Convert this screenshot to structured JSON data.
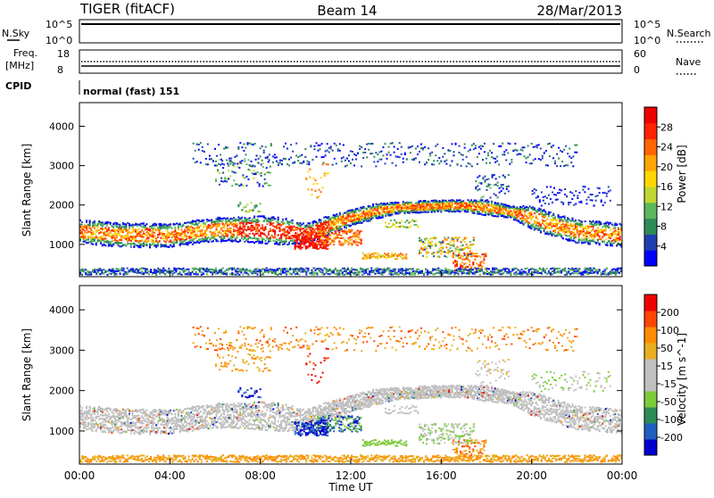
{
  "header": {
    "radar": "TIGER (fitACF)",
    "beam": "Beam 14",
    "date": "28/Mar/2013"
  },
  "nsky_panel": {
    "left_label": "N.Sky",
    "left_ticks": [
      "10^5",
      "10^0"
    ],
    "right_label": "N.Search",
    "right_ticks": [
      "10^5",
      "10^0"
    ]
  },
  "freq_panel": {
    "left_label_line1": "Freq.",
    "left_label_line2": "[MHz]",
    "left_ticks": [
      "18",
      "8"
    ],
    "right_label": "Nave",
    "right_ticks": [
      "60",
      "0"
    ]
  },
  "cpid_panel": {
    "label": "CPID",
    "text": "normal (fast) 151"
  },
  "colors": {
    "power_scale": [
      "#0000ff",
      "#1f3fb0",
      "#2e8b57",
      "#5cb85c",
      "#bfd730",
      "#ffd700",
      "#ffa500",
      "#ff6600",
      "#ff2200",
      "#ee0000"
    ],
    "velocity_scale": [
      "#0000cc",
      "#1f5fbf",
      "#2e8b57",
      "#7ccc3a",
      "#c0c0c0",
      "#c0c0c0",
      "#e8b020",
      "#ff8c00",
      "#ff4500",
      "#ee0000"
    ]
  },
  "chart_data": [
    {
      "type": "heatmap",
      "name": "power",
      "ylabel": "Slant Range [km]",
      "y_ticks": [
        "4000",
        "3000",
        "2000",
        "1000"
      ],
      "ylim": [
        180,
        4600
      ],
      "colorbar_label": "Power [dB]",
      "colorbar_ticks": [
        "28",
        "24",
        "20",
        "16",
        "12",
        "8",
        "4"
      ],
      "colorbar_range": [
        0,
        32
      ]
    },
    {
      "type": "heatmap",
      "name": "velocity",
      "ylabel": "Slant Range [km]",
      "y_ticks": [
        "4000",
        "3000",
        "2000",
        "1000"
      ],
      "ylim": [
        180,
        4600
      ],
      "colorbar_label": "Velocity [m s^-1]",
      "colorbar_ticks": [
        "200",
        "100",
        "50",
        "15",
        "-15",
        "-50",
        "-100",
        "-200"
      ],
      "colorbar_range": [
        -250,
        250
      ]
    }
  ],
  "xaxis": {
    "label": "Time UT",
    "ticks": [
      "00:00",
      "04:00",
      "08:00",
      "12:00",
      "16:00",
      "20:00",
      "00:00"
    ]
  }
}
